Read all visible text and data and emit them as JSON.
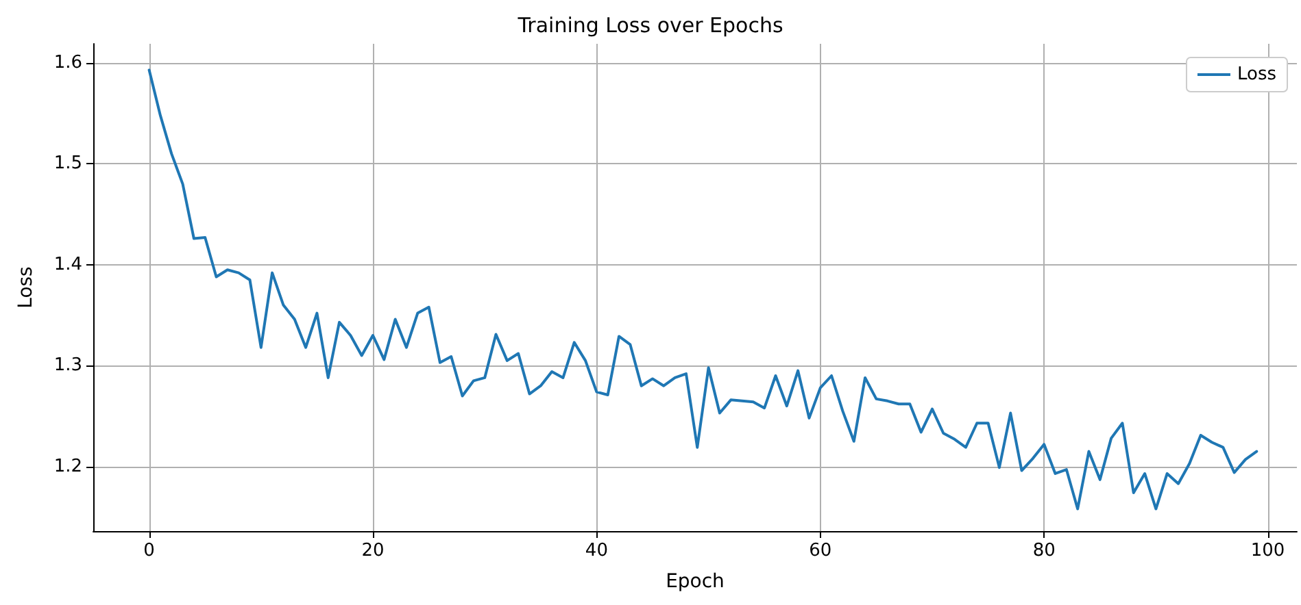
{
  "chart_data": {
    "type": "line",
    "title": "Training Loss over Epochs",
    "xlabel": "Epoch",
    "ylabel": "Loss",
    "x": [
      0,
      1,
      2,
      3,
      4,
      5,
      6,
      7,
      8,
      9,
      10,
      11,
      12,
      13,
      14,
      15,
      16,
      17,
      18,
      19,
      20,
      21,
      22,
      23,
      24,
      25,
      26,
      27,
      28,
      29,
      30,
      31,
      32,
      33,
      34,
      35,
      36,
      37,
      38,
      39,
      40,
      41,
      42,
      43,
      44,
      45,
      46,
      47,
      48,
      49,
      50,
      51,
      52,
      53,
      54,
      55,
      56,
      57,
      58,
      59,
      60,
      61,
      62,
      63,
      64,
      65,
      66,
      67,
      68,
      69,
      70,
      71,
      72,
      73,
      74,
      75,
      76,
      77,
      78,
      79,
      80,
      81,
      82,
      83,
      84,
      85,
      86,
      87,
      88,
      89,
      90,
      91,
      92,
      93,
      94,
      95,
      96,
      97,
      98,
      99
    ],
    "series": [
      {
        "name": "Loss",
        "color": "#1f77b4",
        "values": [
          1.593,
          1.548,
          1.51,
          1.48,
          1.426,
          1.427,
          1.388,
          1.395,
          1.392,
          1.385,
          1.318,
          1.392,
          1.36,
          1.346,
          1.318,
          1.352,
          1.288,
          1.343,
          1.33,
          1.31,
          1.33,
          1.306,
          1.346,
          1.318,
          1.352,
          1.358,
          1.303,
          1.309,
          1.27,
          1.285,
          1.288,
          1.331,
          1.305,
          1.312,
          1.272,
          1.28,
          1.294,
          1.288,
          1.323,
          1.305,
          1.274,
          1.271,
          1.329,
          1.321,
          1.28,
          1.287,
          1.28,
          1.288,
          1.292,
          1.219,
          1.298,
          1.253,
          1.266,
          1.265,
          1.264,
          1.258,
          1.29,
          1.26,
          1.295,
          1.248,
          1.278,
          1.29,
          1.255,
          1.225,
          1.288,
          1.267,
          1.265,
          1.262,
          1.262,
          1.234,
          1.257,
          1.233,
          1.227,
          1.219,
          1.243,
          1.243,
          1.199,
          1.253,
          1.196,
          1.208,
          1.222,
          1.193,
          1.197,
          1.158,
          1.215,
          1.187,
          1.228,
          1.243,
          1.174,
          1.193,
          1.158,
          1.193,
          1.183,
          1.203,
          1.231,
          1.224,
          1.219,
          1.194,
          1.207,
          1.215
        ]
      }
    ],
    "xlim": [
      -5,
      102.6
    ],
    "xticks": [
      0,
      20,
      40,
      60,
      80,
      100
    ],
    "ylim": [
      1.136,
      1.619
    ],
    "yticks": [
      {
        "value": 1.2,
        "label": "1.2"
      },
      {
        "value": 1.3,
        "label": "1.3"
      },
      {
        "value": 1.4,
        "label": "1.4"
      },
      {
        "value": 1.5,
        "label": "1.5"
      },
      {
        "value": 1.6,
        "label": "1.6"
      }
    ],
    "grid": true,
    "legend": "top right",
    "marker": "none",
    "line_style": "solid"
  }
}
